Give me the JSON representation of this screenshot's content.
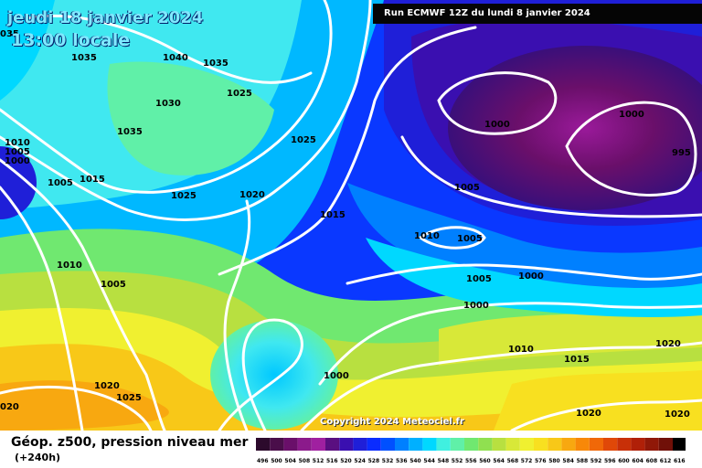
{
  "header": {
    "date": "jeudi 18 janvier 2024",
    "time": "13:00 locale"
  },
  "run_info": "Run ECMWF 12Z du lundi 8 janvier 2024",
  "copyright": "Copyright 2024 Meteociel.fr",
  "legend": {
    "title": "Géop. z500, pression niveau mer",
    "subtitle": "(+240h)",
    "ticks": [
      "496",
      "500",
      "504",
      "508",
      "512",
      "516",
      "520",
      "524",
      "528",
      "532",
      "536",
      "540",
      "544",
      "548",
      "552",
      "556",
      "560",
      "564",
      "568",
      "572",
      "576",
      "580",
      "584",
      "588",
      "592",
      "596",
      "600",
      "604",
      "608",
      "612",
      "616"
    ],
    "colors": [
      "#2c0a2c",
      "#4a0e4a",
      "#6a0f6a",
      "#8b1a8b",
      "#a020a0",
      "#5a0f80",
      "#3a0fb0",
      "#1f1fd8",
      "#0a2cff",
      "#0050ff",
      "#0080ff",
      "#00b0ff",
      "#00d8ff",
      "#40f0e0",
      "#60f0a8",
      "#70e870",
      "#90e050",
      "#b8e040",
      "#d8e838",
      "#f0f030",
      "#f8e020",
      "#f8c818",
      "#f8a810",
      "#f88808",
      "#f06808",
      "#e04808",
      "#c83008",
      "#b02008",
      "#901808",
      "#701008",
      "#000000"
    ]
  },
  "isobars": [
    {
      "label": "1035",
      "color": "#ffffff"
    },
    {
      "label": "1040"
    },
    {
      "label": "1035"
    },
    {
      "label": "1025"
    },
    {
      "label": "1030"
    },
    {
      "label": "1035"
    },
    {
      "label": "1025"
    },
    {
      "label": "1010"
    },
    {
      "label": "1005"
    },
    {
      "label": "1000"
    },
    {
      "label": "1005"
    },
    {
      "label": "1015"
    },
    {
      "label": "1025"
    },
    {
      "label": "1020"
    },
    {
      "label": "1015"
    },
    {
      "label": "1010"
    },
    {
      "label": "1005"
    },
    {
      "label": "1010"
    },
    {
      "label": "1005"
    },
    {
      "label": "1000"
    },
    {
      "label": "1000"
    },
    {
      "label": "995"
    },
    {
      "label": "1005"
    },
    {
      "label": "1000"
    },
    {
      "label": "1000"
    },
    {
      "label": "1005"
    },
    {
      "label": "1010"
    },
    {
      "label": "1015"
    },
    {
      "label": "1020"
    },
    {
      "label": "1020"
    },
    {
      "label": "1020"
    },
    {
      "label": "1025"
    },
    {
      "label": "1000"
    },
    {
      "label": "1020"
    },
    {
      "label": "035"
    },
    {
      "label": "020"
    }
  ]
}
